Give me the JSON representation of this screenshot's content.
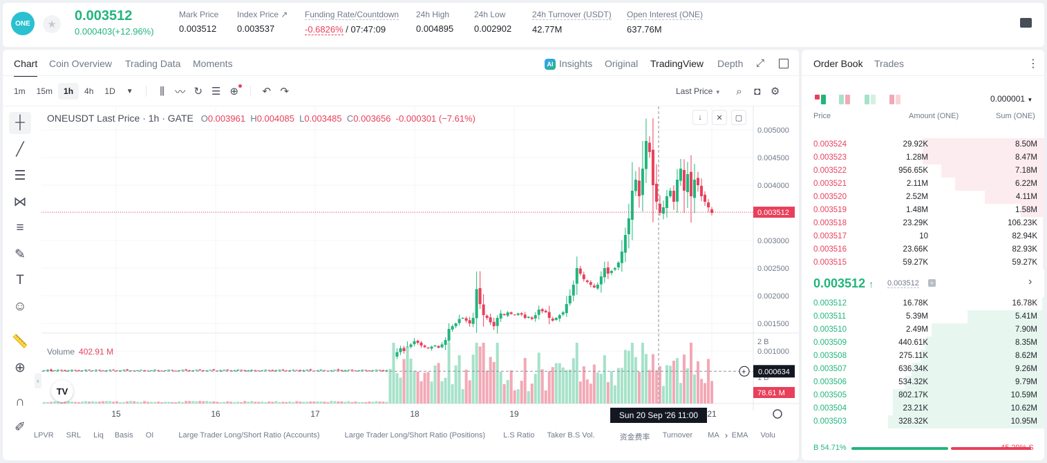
{
  "header": {
    "logo_text": "ONE",
    "price": "0.003512",
    "change": "0.000403(+12.96%)",
    "stats": [
      {
        "label": "Mark Price",
        "value": "0.003512"
      },
      {
        "label": "Index Price ↗",
        "value": "0.003537"
      },
      {
        "label": "Funding Rate/Countdown",
        "value_red": "-0.6826%",
        "value": " / 07:47:09"
      },
      {
        "label": "24h High",
        "value": "0.004895"
      },
      {
        "label": "24h Low",
        "value": "0.002902"
      },
      {
        "label": "24h Turnover (USDT)",
        "value": "42.77M"
      },
      {
        "label": "Open Interest (ONE)",
        "value": "637.76M"
      }
    ]
  },
  "chart_panel": {
    "tabs": [
      "Chart",
      "Coin Overview",
      "Trading Data",
      "Moments"
    ],
    "active_tab": "Chart",
    "right_tabs": [
      "Insights",
      "Original",
      "TradingView",
      "Depth"
    ],
    "active_right_tab": "TradingView",
    "insights_badge": "AI",
    "intervals": [
      "1m",
      "15m",
      "1h",
      "4h",
      "1D"
    ],
    "active_interval": "1h",
    "price_type": "Last Price",
    "legend": {
      "symbol": "ONEUSDT Last Price · 1h · GATE",
      "o_label": "O",
      "o": "0.003961",
      "h_label": "H",
      "h": "0.004085",
      "l_label": "L",
      "l": "0.003485",
      "c_label": "C",
      "c": "0.003656",
      "change": "-0.000301 (−7.61%)"
    },
    "volume_label": "Volume",
    "volume_value": "402.91 M",
    "tv_logo": "TV",
    "bottom_indicators": [
      "LPVR",
      "SRL",
      "Liq",
      "Basis",
      "OI",
      "Large Trader Long/Short Ratio (Accounts)",
      "Large Trader Long/Short Ratio (Positions)",
      "L.S Ratio",
      "Taker B.S Vol.",
      "资金费率",
      "Turnover",
      "MA",
      "EMA",
      "Volu"
    ]
  },
  "chart_data": {
    "type": "candlestick",
    "symbol": "ONEUSDT",
    "interval": "1h",
    "y_ticks": [
      "0.005000",
      "0.004500",
      "0.004000",
      "0.003000",
      "0.002500",
      "0.002000",
      "0.001500",
      "0.001000"
    ],
    "ylim": [
      0.0003,
      0.0052
    ],
    "vol_ticks": [
      "2 B",
      "1 B"
    ],
    "x_ticks": [
      "15",
      "16",
      "17",
      "18",
      "19",
      "21"
    ],
    "last_price_label": "0.003512",
    "last_price": 0.003512,
    "crosshair_price_label": "0.000634",
    "crosshair_price": 0.000634,
    "crosshair_time_label": "Sun 20 Sep '26   11:00",
    "volume_last_label": "78.61 M",
    "colors": {
      "up": "#21b57c",
      "down": "#e8405b",
      "up_vol": "#a6e2c9",
      "down_vol": "#f3a8b5"
    },
    "candles_anchor_closes": [
      0.00065,
      0.00066,
      0.00064,
      0.00065,
      0.00066,
      0.00065,
      0.00064,
      0.00065,
      0.00066,
      0.00065,
      0.00064,
      0.00065,
      0.00066,
      0.00065,
      0.00065,
      0.00066,
      0.00065,
      0.00064,
      0.00065,
      0.00066,
      0.00065,
      0.00064,
      0.00065,
      0.00066,
      0.00065,
      0.00065,
      0.00064,
      0.00065,
      0.00066,
      0.00065,
      0.00064,
      0.00065,
      0.00066,
      0.00065,
      0.00064,
      0.00065,
      0.00066,
      0.00065,
      0.00064,
      0.00065,
      0.00066,
      0.00065,
      0.00064,
      0.00065,
      0.00066,
      0.00065,
      0.00064,
      0.00065,
      0.00066,
      0.00065,
      0.00064,
      0.00065,
      0.00066,
      0.00065,
      0.00064,
      0.00065,
      0.00066,
      0.00065,
      0.00064,
      0.00065,
      0.00066,
      0.00065,
      0.00064,
      0.00065,
      0.00066,
      0.00065,
      0.00064,
      0.00065,
      0.00066,
      0.00065,
      0.00064,
      0.00065,
      0.00066,
      0.00065,
      0.00064,
      0.00065,
      0.00066,
      0.00065,
      0.00064,
      0.00065,
      0.00066,
      0.00065,
      0.00064,
      0.00065,
      0.00066,
      0.00065,
      0.00064,
      0.00065,
      0.00066,
      0.00065,
      0.00064,
      0.00065,
      0.00066,
      0.00065,
      0.00064,
      0.00065,
      0.00066,
      0.00065,
      0.00064,
      0.00065,
      0.00066,
      0.0009,
      0.00098,
      0.00105,
      0.001,
      0.00108,
      0.00112,
      0.00118,
      0.00115,
      0.0011,
      0.00107,
      0.00105,
      0.00108,
      0.0011,
      0.00106,
      0.00112,
      0.0012,
      0.0014,
      0.00145,
      0.0015,
      0.00158,
      0.0016,
      0.00155,
      0.0015,
      0.0016,
      0.00212,
      0.00185,
      0.00165,
      0.0016,
      0.00152,
      0.00145,
      0.0016,
      0.00168,
      0.00165,
      0.0017,
      0.00167,
      0.00165,
      0.00168,
      0.00166,
      0.0016,
      0.00162,
      0.00158,
      0.00165,
      0.00175,
      0.00172,
      0.0017,
      0.0016,
      0.00155,
      0.0016,
      0.00165,
      0.0017,
      0.00185,
      0.002,
      0.0022,
      0.0025,
      0.0024,
      0.0023,
      0.00225,
      0.0022,
      0.00215,
      0.0022,
      0.00235,
      0.0025,
      0.0024,
      0.00245,
      0.0025,
      0.0026,
      0.0028,
      0.0031,
      0.0034,
      0.0039,
      0.0041,
      0.0038,
      0.0043,
      0.0048,
      0.0046,
      0.004,
      0.0037,
      0.0035,
      0.0036,
      0.0038,
      0.0039,
      0.0037,
      0.0041,
      0.0043,
      0.0039,
      0.0042,
      0.0038,
      0.0041,
      0.004,
      0.0038,
      0.0037,
      0.0036,
      0.0035
    ]
  },
  "order_book": {
    "tabs": [
      "Order Book",
      "Trades"
    ],
    "active_tab": "Order Book",
    "precision": "0.000001",
    "headers": {
      "price": "Price",
      "amount": "Amount (ONE)",
      "sum": "Sum (ONE)"
    },
    "asks": [
      {
        "price": "0.003524",
        "amount": "29.92K",
        "sum": "8.50M",
        "depth": 0.78
      },
      {
        "price": "0.003523",
        "amount": "1.28M",
        "sum": "8.47M",
        "depth": 0.78
      },
      {
        "price": "0.003522",
        "amount": "956.65K",
        "sum": "7.18M",
        "depth": 0.66
      },
      {
        "price": "0.003521",
        "amount": "2.11M",
        "sum": "6.22M",
        "depth": 0.57
      },
      {
        "price": "0.003520",
        "amount": "2.52M",
        "sum": "4.11M",
        "depth": 0.38
      },
      {
        "price": "0.003519",
        "amount": "1.48M",
        "sum": "1.58M",
        "depth": 0.15
      },
      {
        "price": "0.003518",
        "amount": "23.29K",
        "sum": "106.23K",
        "depth": 0.01
      },
      {
        "price": "0.003517",
        "amount": "10",
        "sum": "82.94K",
        "depth": 0.008
      },
      {
        "price": "0.003516",
        "amount": "23.66K",
        "sum": "82.93K",
        "depth": 0.008
      },
      {
        "price": "0.003515",
        "amount": "59.27K",
        "sum": "59.27K",
        "depth": 0.006
      }
    ],
    "mid_price": "0.003512",
    "mid_arrow": "↑",
    "mark_price": "0.003512",
    "bids": [
      {
        "price": "0.003512",
        "amount": "16.78K",
        "sum": "16.78K",
        "depth": 0.015
      },
      {
        "price": "0.003511",
        "amount": "5.39M",
        "sum": "5.41M",
        "depth": 0.49
      },
      {
        "price": "0.003510",
        "amount": "2.49M",
        "sum": "7.90M",
        "depth": 0.72
      },
      {
        "price": "0.003509",
        "amount": "440.61K",
        "sum": "8.35M",
        "depth": 0.76
      },
      {
        "price": "0.003508",
        "amount": "275.11K",
        "sum": "8.62M",
        "depth": 0.79
      },
      {
        "price": "0.003507",
        "amount": "636.34K",
        "sum": "9.26M",
        "depth": 0.85
      },
      {
        "price": "0.003506",
        "amount": "534.32K",
        "sum": "9.79M",
        "depth": 0.89
      },
      {
        "price": "0.003505",
        "amount": "802.17K",
        "sum": "10.59M",
        "depth": 0.97
      },
      {
        "price": "0.003504",
        "amount": "23.21K",
        "sum": "10.62M",
        "depth": 0.97
      },
      {
        "price": "0.003503",
        "amount": "328.32K",
        "sum": "10.95M",
        "depth": 1.0
      }
    ],
    "buy_pct_label": "54.71%",
    "sell_pct_label": "45.29%",
    "buy_pct": 54.71,
    "buy_letter": "B",
    "sell_letter": "S"
  }
}
